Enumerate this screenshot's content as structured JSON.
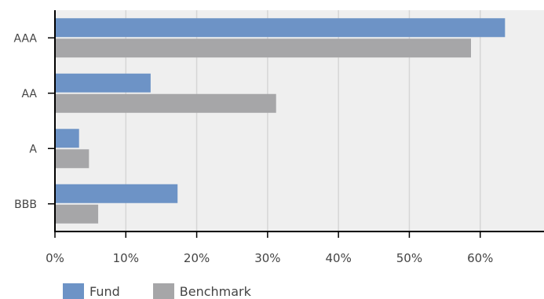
{
  "chart_data": {
    "type": "bar",
    "orientation": "horizontal",
    "categories": [
      "AAA",
      "AA",
      "A",
      "BBB"
    ],
    "series": [
      {
        "name": "Fund",
        "color": "#6d93c6",
        "values": [
          63.5,
          13.5,
          3.4,
          17.3
        ]
      },
      {
        "name": "Benchmark",
        "color": "#a6a6a8",
        "values": [
          58.7,
          31.2,
          4.8,
          6.1
        ]
      }
    ],
    "xlim": [
      0,
      69
    ],
    "x_ticks": [
      0,
      10,
      20,
      30,
      40,
      50,
      60
    ],
    "x_tick_labels": [
      "0%",
      "10%",
      "20%",
      "30%",
      "40%",
      "50%",
      "60%"
    ],
    "grid": true,
    "plot_background": "#efefef",
    "legend": "bottom-left"
  },
  "legend": {
    "fund_label": "Fund",
    "benchmark_label": "Benchmark"
  }
}
